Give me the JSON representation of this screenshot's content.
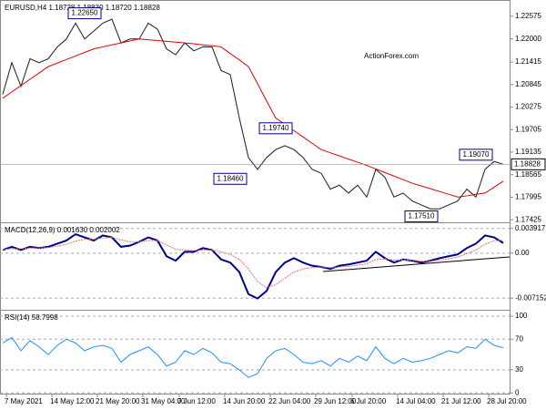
{
  "chart_data": [
    {
      "type": "line",
      "title": "EURUSD,H4  1.18728 1.18830 1.18720 1.18828",
      "watermark": "ActionForex.com",
      "categories": [
        null,
        null,
        "7 May 2021",
        null,
        null,
        null,
        null,
        "14 May 12:00",
        null,
        null,
        null,
        null,
        "21 May 20:00",
        null,
        null,
        null,
        null,
        "31 May 04:00",
        null,
        null,
        null,
        "7 Jun 12:00",
        null,
        null,
        null,
        null,
        "14 Jun 20:00",
        null,
        null,
        null,
        null,
        "22 Jun 04:00",
        null,
        null,
        null,
        null,
        "29 Jun 12:00",
        null,
        null,
        null,
        "6 Jul 20:00",
        null,
        null,
        null,
        null,
        "14 Jul 04:00",
        null,
        null,
        null,
        null,
        "21 Jul 12:00",
        null,
        null,
        null,
        null,
        "28 Jul 20:00"
      ],
      "series": [
        {
          "color": "#1a1a1a",
          "values": [
            1.206,
            1.214,
            1.208,
            1.215,
            1.214,
            1.215,
            1.218,
            1.22,
            1.224,
            1.22,
            1.222,
            1.224,
            1.225,
            1.219,
            1.22,
            1.22,
            1.224,
            1.2225,
            1.2175,
            1.216,
            1.219,
            1.217,
            1.218,
            1.218,
            1.212,
            1.211,
            1.2,
            1.19,
            1.187,
            1.19,
            1.192,
            1.193,
            1.192,
            1.19,
            1.187,
            1.186,
            1.182,
            1.183,
            1.181,
            1.183,
            1.18,
            1.187,
            1.185,
            1.18,
            1.181,
            1.179,
            1.178,
            1.177,
            1.177,
            1.178,
            1.179,
            1.182,
            1.18,
            1.187,
            1.189,
            1.18828
          ]
        },
        {
          "color": "#e00000",
          "values": [
            1.205,
            1.2066,
            1.2082,
            1.2098,
            1.2114,
            1.213,
            1.2139,
            1.2148,
            1.2157,
            1.2166,
            1.2175,
            1.218,
            1.2185,
            1.219,
            1.2195,
            1.22,
            1.2198,
            1.2196,
            1.2194,
            1.2192,
            1.219,
            1.2188,
            1.2185,
            1.2183,
            1.218,
            1.2163,
            1.2147,
            1.213,
            1.2087,
            1.2043,
            1.2,
            1.1984,
            1.1968,
            1.1952,
            1.1936,
            1.192,
            1.1912,
            1.1904,
            1.1896,
            1.1888,
            1.188,
            1.1871,
            1.1862,
            1.1853,
            1.1844,
            1.1835,
            1.1828,
            1.1821,
            1.1814,
            1.1807,
            1.18,
            1.1803,
            1.1807,
            1.181,
            1.1825,
            1.184
          ]
        }
      ],
      "ylim": [
        1.1736,
        1.2294
      ],
      "yticks": [
        1.22575,
        {
          "value": 1.22,
          "label": "1.22000"
        },
        1.21415,
        1.20845,
        1.20275,
        1.19705,
        1.19135,
        1.18565,
        1.17995,
        1.17425
      ],
      "current": {
        "value": 1.18828,
        "label": "1.18828"
      },
      "annotations": [
        {
          "x": 9,
          "value": 1.2265,
          "label": "1.22650"
        },
        {
          "x": 30,
          "value": 1.1974,
          "label": "1.19740"
        },
        {
          "x": 25,
          "value": 1.1846,
          "label": "1.18460"
        },
        {
          "x": 46,
          "value": 1.1751,
          "label": "1.17510"
        },
        {
          "x": 52,
          "value": 1.1907,
          "label": "1.19070"
        }
      ],
      "grid": false
    },
    {
      "type": "line",
      "title": "MACD(12,26,9) 0.001630 0.002002",
      "series": [
        {
          "color": "#00008b",
          "values": [
            0.0005,
            0.001,
            0.0005,
            0.001,
            0.0008,
            0.001,
            0.0015,
            0.002,
            0.003,
            0.0025,
            0.002,
            0.0028,
            0.0025,
            0.001,
            0.0012,
            0.0018,
            0.0025,
            0.002,
            -0.0005,
            -0.0012,
            0.0002,
            0.0002,
            0.0008,
            0.0005,
            -0.001,
            -0.0015,
            -0.003,
            -0.0065,
            -0.0072,
            -0.006,
            -0.003,
            -0.0015,
            -0.0008,
            -0.0015,
            -0.002,
            -0.0022,
            -0.0025,
            -0.002,
            -0.0018,
            -0.0015,
            -0.0012,
            0.0002,
            -0.0008,
            -0.0015,
            -0.001,
            -0.0012,
            -0.0015,
            -0.0012,
            -0.0008,
            -0.0005,
            -0.0002,
            0.0008,
            0.0015,
            0.0028,
            0.0025,
            0.0016
          ]
        },
        {
          "color": "#e07070",
          "values": [
            0.0006,
            0.0007,
            0.0007,
            0.0008,
            0.0008,
            0.0009,
            0.0011,
            0.0014,
            0.0019,
            0.0022,
            0.0022,
            0.0024,
            0.0025,
            0.0021,
            0.0018,
            0.0018,
            0.002,
            0.002,
            0.0013,
            0.0006,
            0.0005,
            0.0004,
            0.0005,
            0.0005,
            0.0002,
            -0.0002,
            -0.001,
            -0.0025,
            -0.0045,
            -0.0055,
            -0.005,
            -0.004,
            -0.003,
            -0.0025,
            -0.0023,
            -0.0022,
            -0.0023,
            -0.0022,
            -0.0021,
            -0.0019,
            -0.0017,
            -0.001,
            -0.0009,
            -0.0011,
            -0.0011,
            -0.0011,
            -0.0013,
            -0.0013,
            -0.0011,
            -0.0009,
            -0.0006,
            -0.0001,
            0.0005,
            0.0014,
            0.002,
            0.002
          ]
        }
      ],
      "ylim": [
        -0.0087,
        0.0046
      ],
      "yticks": [
        0.003917,
        {
          "value": 0,
          "label": "0.00"
        },
        -0.007152
      ],
      "grid": "dashed"
    },
    {
      "type": "line",
      "title": "RSI(14) 58.7998",
      "series": [
        {
          "color": "#1e90ff",
          "values": [
            65,
            72,
            55,
            68,
            60,
            50,
            62,
            70,
            65,
            55,
            60,
            62,
            58,
            40,
            50,
            55,
            60,
            50,
            35,
            40,
            55,
            50,
            58,
            52,
            40,
            38,
            30,
            20,
            25,
            45,
            55,
            58,
            50,
            40,
            38,
            42,
            35,
            45,
            40,
            48,
            42,
            60,
            45,
            38,
            45,
            40,
            42,
            45,
            50,
            55,
            52,
            60,
            58,
            70,
            62,
            58.8
          ]
        }
      ],
      "ylim": [
        -1,
        106
      ],
      "yticks": [
        100,
        70,
        30,
        0
      ],
      "grid": "dashed"
    }
  ]
}
